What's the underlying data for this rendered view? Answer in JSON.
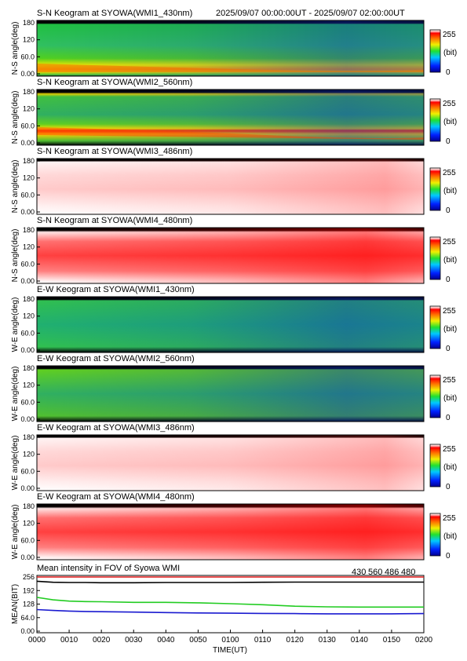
{
  "header": {
    "time_range": "2025/09/07 00:00:00UT - 2025/09/07 02:00:00UT"
  },
  "colorbar": {
    "max_label": "255",
    "unit_label": "(bit)",
    "min_label": "0"
  },
  "panels": [
    {
      "title": "S-N Keogram at SYOWA(WMI1_430nm)",
      "ylabel": "N-S angle(deg)",
      "pattern": "g430"
    },
    {
      "title": "S-N Keogram at SYOWA(WMI2_560nm)",
      "ylabel": "N-S angle(deg)",
      "pattern": "g560"
    },
    {
      "title": "S-N Keogram at SYOWA(WMI3_486nm)",
      "ylabel": "N-S angle(deg)",
      "pattern": "pale"
    },
    {
      "title": "S-N Keogram at SYOWA(WMI4_480nm)",
      "ylabel": "N-S angle(deg)",
      "pattern": "red"
    },
    {
      "title": "E-W Keogram at SYOWA(WMI1_430nm)",
      "ylabel": "W-E angle(deg)",
      "pattern": "g430ew"
    },
    {
      "title": "E-W Keogram at SYOWA(WMI2_560nm)",
      "ylabel": "W-E angle(deg)",
      "pattern": "g560ew"
    },
    {
      "title": "E-W Keogram at SYOWA(WMI3_486nm)",
      "ylabel": "W-E angle(deg)",
      "pattern": "pale"
    },
    {
      "title": "E-W Keogram at SYOWA(WMI4_480nm)",
      "ylabel": "W-E angle(deg)",
      "pattern": "red"
    }
  ],
  "keogram_yticks": [
    "180",
    "120",
    "60.0",
    "0.00"
  ],
  "colors": {
    "s430": "#1a1ad0",
    "s560": "#22cc22",
    "s486": "#e01818",
    "s480": "#000000"
  },
  "chart_data": {
    "type": "line",
    "title": "Mean intensity in FOV of Syowa WMI",
    "xlabel": "TIME(UT)",
    "ylabel": "MEAN(BIT)",
    "ylim": [
      0,
      256
    ],
    "yticks": [
      "256",
      "192",
      "128",
      "64.0",
      "0.00"
    ],
    "xticks": [
      "0000",
      "0010",
      "0020",
      "0030",
      "0040",
      "0050",
      "0100",
      "0110",
      "0120",
      "0130",
      "0140",
      "0150",
      "0200"
    ],
    "x": [
      0,
      5,
      10,
      15,
      20,
      30,
      40,
      50,
      60,
      70,
      80,
      90,
      100,
      110,
      120
    ],
    "series": [
      {
        "name": "430",
        "values": [
          102,
          98,
          95,
          93,
          92,
          90,
          88,
          86,
          85,
          84,
          83,
          82,
          82,
          82,
          83
        ]
      },
      {
        "name": "560",
        "values": [
          160,
          148,
          142,
          140,
          139,
          136,
          136,
          134,
          130,
          125,
          118,
          115,
          114,
          114,
          114
        ]
      },
      {
        "name": "486",
        "values": [
          256,
          256,
          256,
          256,
          256,
          256,
          256,
          256,
          256,
          256,
          256,
          256,
          256,
          256,
          256
        ]
      },
      {
        "name": "480",
        "values": [
          236,
          231,
          230,
          230,
          229,
          229,
          230,
          230,
          230,
          231,
          232,
          232,
          232,
          232,
          232
        ]
      }
    ]
  }
}
